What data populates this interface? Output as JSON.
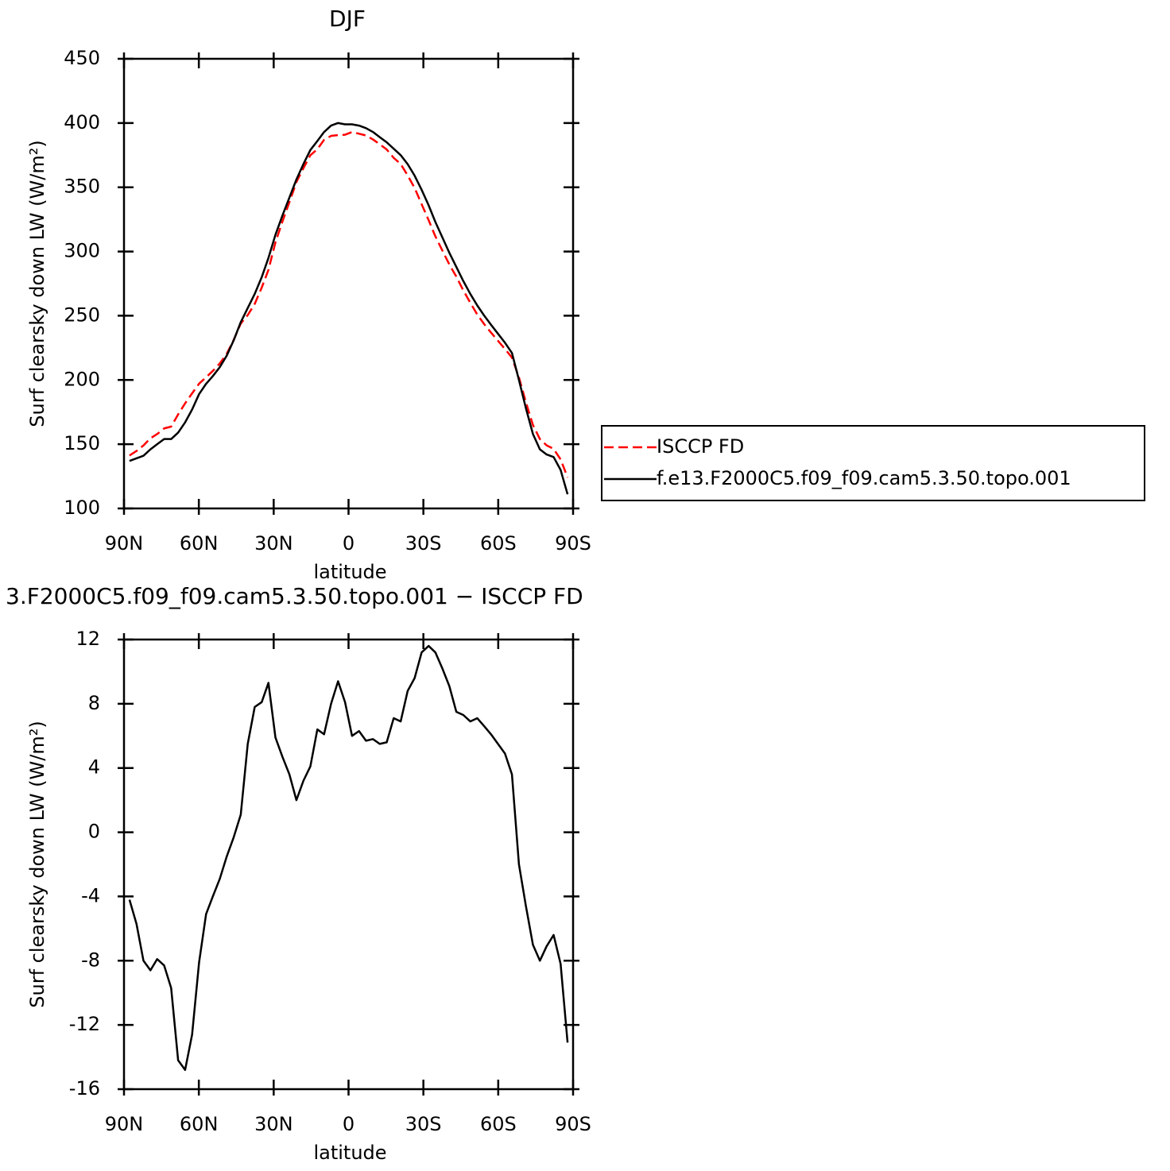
{
  "chart_data": [
    {
      "type": "line",
      "title": "DJF",
      "xlabel": "latitude",
      "ylabel": "Surf clearsky down LW (W/m²)",
      "x": [
        87.8,
        85.0,
        82.2,
        79.4,
        76.7,
        73.9,
        71.1,
        68.3,
        65.5,
        62.7,
        59.9,
        57.1,
        54.4,
        51.6,
        48.8,
        46.0,
        43.2,
        40.4,
        37.6,
        34.8,
        32.1,
        29.3,
        26.5,
        23.7,
        20.9,
        18.1,
        15.3,
        12.5,
        9.8,
        7.0,
        4.2,
        1.4,
        -1.4,
        -4.2,
        -7.0,
        -9.8,
        -12.5,
        -15.3,
        -18.1,
        -20.9,
        -23.7,
        -26.5,
        -29.3,
        -32.1,
        -34.8,
        -37.6,
        -40.4,
        -43.2,
        -46.0,
        -48.8,
        -51.6,
        -54.4,
        -57.1,
        -59.9,
        -62.7,
        -65.5,
        -68.3,
        -71.1,
        -73.9,
        -76.7,
        -79.4,
        -82.2,
        -85.0,
        -87.8
      ],
      "series": [
        {
          "name": "ISCCP FD",
          "color": "#ff0000",
          "dashed": true,
          "values": [
            141.2,
            144.7,
            149,
            154.6,
            157.9,
            162.3,
            163.7,
            173.2,
            181.8,
            189.6,
            197.1,
            202.1,
            207,
            212.9,
            220.5,
            231.3,
            243.9,
            250.5,
            259.2,
            271.9,
            285.7,
            307.1,
            323.3,
            338.4,
            354,
            364.8,
            374.9,
            379.6,
            386.9,
            390,
            390.6,
            390.9,
            393,
            391.7,
            390.3,
            387.2,
            383.5,
            379.4,
            372.9,
            368.1,
            359.2,
            349.4,
            336.8,
            324.4,
            311.8,
            300.8,
            289.9,
            280.5,
            269.7,
            260.1,
            250.9,
            243.4,
            236.9,
            230.5,
            224.1,
            217.4,
            202,
            182.6,
            165,
            154,
            149.1,
            146.4,
            138.2,
            124.1
          ]
        },
        {
          "name": "f.e13.F2000C5.f09_f09.cam5.3.50.topo.001",
          "color": "#000000",
          "dashed": false,
          "values": [
            137,
            139,
            141,
            146,
            150,
            154,
            154,
            159,
            167,
            177,
            189,
            197,
            203,
            210,
            219,
            231,
            245,
            256,
            267,
            280,
            295,
            313,
            328,
            342,
            356,
            368,
            379,
            386,
            393,
            398,
            400,
            399,
            399,
            398,
            396,
            393,
            389,
            385,
            380,
            375,
            368,
            359,
            348,
            336,
            323,
            311,
            299,
            288,
            277,
            267,
            258,
            250,
            243,
            236,
            229,
            221,
            200,
            178,
            158,
            146,
            142,
            140,
            130,
            111
          ]
        }
      ],
      "xlim": [
        90,
        -90
      ],
      "xticks": [
        {
          "value": 90,
          "label": "90N"
        },
        {
          "value": 60,
          "label": "60N"
        },
        {
          "value": 30,
          "label": "30N"
        },
        0,
        {
          "value": -30,
          "label": "30S"
        },
        {
          "value": -60,
          "label": "60S"
        },
        {
          "value": -90,
          "label": "90S"
        }
      ],
      "ylim": [
        100,
        450
      ],
      "yticks": [
        100,
        150,
        200,
        250,
        300,
        350,
        400,
        450
      ],
      "legend": "right"
    },
    {
      "type": "line",
      "title": "3.F2000C5.f09_f09.cam5.3.50.topo.001 − ISCCP FD",
      "xlabel": "latitude",
      "ylabel": "Surf clearsky down LW (W/m²)",
      "x": [
        87.8,
        85.0,
        82.2,
        79.4,
        76.7,
        73.9,
        71.1,
        68.3,
        65.5,
        62.7,
        59.9,
        57.1,
        54.4,
        51.6,
        48.8,
        46.0,
        43.2,
        40.4,
        37.6,
        34.8,
        32.1,
        29.3,
        26.5,
        23.7,
        20.9,
        18.1,
        15.3,
        12.5,
        9.8,
        7.0,
        4.2,
        1.4,
        -1.4,
        -4.2,
        -7.0,
        -9.8,
        -12.5,
        -15.3,
        -18.1,
        -20.9,
        -23.7,
        -26.5,
        -29.3,
        -32.1,
        -34.8,
        -37.6,
        -40.4,
        -43.2,
        -46.0,
        -48.8,
        -51.6,
        -54.4,
        -57.1,
        -59.9,
        -62.7,
        -65.5,
        -68.3,
        -71.1,
        -73.9,
        -76.7,
        -79.4,
        -82.2,
        -85.0,
        -87.8
      ],
      "color": "#000000",
      "values": [
        -4.2,
        -5.7,
        -8.0,
        -8.6,
        -7.9,
        -8.3,
        -9.7,
        -14.2,
        -14.8,
        -12.6,
        -8.1,
        -5.1,
        -4.0,
        -2.9,
        -1.5,
        -0.3,
        1.1,
        5.5,
        7.8,
        8.1,
        9.3,
        5.9,
        4.7,
        3.6,
        2.0,
        3.2,
        4.1,
        6.4,
        6.1,
        8.0,
        9.4,
        8.1,
        6.0,
        6.3,
        5.7,
        5.8,
        5.5,
        5.6,
        7.1,
        6.9,
        8.8,
        9.6,
        11.2,
        11.6,
        11.2,
        10.2,
        9.1,
        7.5,
        7.3,
        6.9,
        7.1,
        6.6,
        6.1,
        5.5,
        4.9,
        3.6,
        -2.0,
        -4.6,
        -7.0,
        -8.0,
        -7.1,
        -6.4,
        -8.2,
        -13.1
      ],
      "xlim": [
        90,
        -90
      ],
      "xticks": [
        {
          "value": 90,
          "label": "90N"
        },
        {
          "value": 60,
          "label": "60N"
        },
        {
          "value": 30,
          "label": "30N"
        },
        0,
        {
          "value": -30,
          "label": "30S"
        },
        {
          "value": -60,
          "label": "60S"
        },
        {
          "value": -90,
          "label": "90S"
        }
      ],
      "ylim": [
        -16,
        12
      ],
      "yticks": [
        -16,
        -12,
        -8,
        -4,
        0,
        4,
        8,
        12
      ]
    }
  ]
}
